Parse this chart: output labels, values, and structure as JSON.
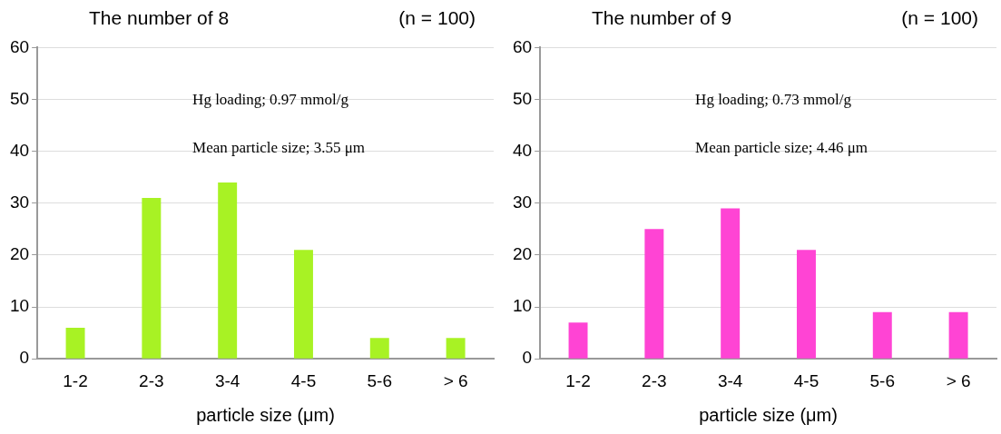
{
  "chart_data": [
    {
      "type": "bar",
      "title": "The number of 8",
      "subtitle": "(n = 100)",
      "xlabel": "particle size (μm)",
      "categories": [
        "1-2",
        "2-3",
        "3-4",
        "4-5",
        "5-6",
        "> 6"
      ],
      "values": [
        6,
        31,
        34,
        21,
        4,
        4
      ],
      "color": "#a8f224",
      "ylim": [
        0,
        60
      ],
      "yticks": [
        0,
        10,
        20,
        30,
        40,
        50,
        60
      ],
      "grid": "y",
      "annotations": [
        "Hg loading; 0.97 mmol/g",
        "Mean particle size; 3.55 μm"
      ]
    },
    {
      "type": "bar",
      "title": "The number of 9",
      "subtitle": "(n = 100)",
      "xlabel": "particle size (μm)",
      "categories": [
        "1-2",
        "2-3",
        "3-4",
        "4-5",
        "5-6",
        "> 6"
      ],
      "values": [
        7,
        25,
        29,
        21,
        9,
        9
      ],
      "color": "#ff44d4",
      "ylim": [
        0,
        60
      ],
      "yticks": [
        0,
        10,
        20,
        30,
        40,
        50,
        60
      ],
      "grid": "y",
      "annotations": [
        "Hg loading; 0.73 mmol/g",
        "Mean particle size; 4.46 μm"
      ]
    }
  ]
}
